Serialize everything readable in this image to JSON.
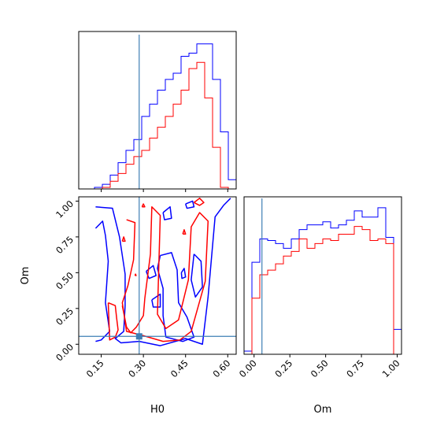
{
  "chart_data": {
    "type": "corner",
    "parameters": [
      "H0",
      "Om"
    ],
    "truth": {
      "H0": 0.285,
      "Om": 0.055
    },
    "ranges": {
      "H0": [
        0.07,
        0.63
      ],
      "Om": [
        -0.07,
        1.03
      ]
    },
    "ticks": {
      "H0": [
        0.15,
        0.3,
        0.45,
        0.6
      ],
      "Om": [
        0.0,
        0.25,
        0.5,
        0.75,
        1.0
      ]
    },
    "tick_labels": {
      "H0": [
        "0.15",
        "0.30",
        "0.45",
        "0.60"
      ],
      "Om": [
        "0.00",
        "0.25",
        "0.50",
        "0.75",
        "1.00"
      ]
    },
    "xlabels": {
      "H0": "H0",
      "Om": "Om"
    },
    "ylabels": {
      "Om": "Om"
    },
    "colors": {
      "series_a": "#0000ff",
      "series_b": "#ff0000",
      "truth": "#3e7fb5"
    },
    "histograms": {
      "H0": {
        "bin_edges": [
          0.07,
          0.098,
          0.126,
          0.154,
          0.182,
          0.21,
          0.238,
          0.266,
          0.294,
          0.322,
          0.35,
          0.378,
          0.406,
          0.434,
          0.462,
          0.49,
          0.518,
          0.546,
          0.574,
          0.602,
          0.63
        ],
        "series": [
          {
            "color": "#0000ff",
            "counts": [
              0,
              0,
              0.01,
              0.03,
              0.09,
              0.17,
              0.25,
              0.32,
              0.47,
              0.55,
              0.64,
              0.71,
              0.75,
              0.86,
              0.88,
              0.94,
              0.94,
              0.71,
              0.37,
              0.06
            ]
          },
          {
            "color": "#ff0000",
            "counts": [
              0,
              0,
              0,
              0.01,
              0.05,
              0.1,
              0.16,
              0.21,
              0.25,
              0.33,
              0.4,
              0.47,
              0.55,
              0.64,
              0.78,
              0.82,
              0.59,
              0.27,
              0.01,
              0
            ]
          }
        ]
      },
      "Om": {
        "bin_edges": [
          -0.07,
          -0.015,
          0.04,
          0.095,
          0.15,
          0.205,
          0.26,
          0.315,
          0.37,
          0.425,
          0.48,
          0.535,
          0.59,
          0.645,
          0.7,
          0.755,
          0.81,
          0.865,
          0.92,
          0.975,
          1.03
        ],
        "series": [
          {
            "color": "#0000ff",
            "counts": [
              0.02,
              0.59,
              0.74,
              0.73,
              0.71,
              0.68,
              0.74,
              0.8,
              0.83,
              0.83,
              0.85,
              0.81,
              0.83,
              0.86,
              0.92,
              0.88,
              0.88,
              0.94,
              0.75,
              0.16
            ]
          },
          {
            "color": "#ff0000",
            "counts": [
              0,
              0.36,
              0.51,
              0.54,
              0.58,
              0.63,
              0.66,
              0.74,
              0.68,
              0.71,
              0.74,
              0.73,
              0.77,
              0.77,
              0.82,
              0.8,
              0.73,
              0.74,
              0.71,
              0
            ]
          }
        ]
      }
    },
    "contours": {
      "panel": "Om_vs_H0",
      "series": [
        {
          "color": "#0000ff",
          "paths": [
            [
              [
                0.13,
                0.96
              ],
              [
                0.19,
                0.95
              ],
              [
                0.215,
                0.75
              ],
              [
                0.235,
                0.49
              ],
              [
                0.235,
                0.27
              ],
              [
                0.23,
                0.09
              ],
              [
                0.2,
                0.04
              ],
              [
                0.22,
                0.01
              ],
              [
                0.285,
                0.02
              ],
              [
                0.36,
                -0.01
              ],
              [
                0.45,
                0.04
              ],
              [
                0.51,
                0.0
              ],
              [
                0.53,
                0.33
              ],
              [
                0.555,
                0.89
              ],
              [
                0.585,
                0.97
              ],
              [
                0.61,
                1.02
              ]
            ],
            [
              [
                0.13,
                0.81
              ],
              [
                0.155,
                0.86
              ],
              [
                0.165,
                0.76
              ],
              [
                0.175,
                0.58
              ],
              [
                0.165,
                0.29
              ],
              [
                0.18,
                0.09
              ],
              [
                0.15,
                0.03
              ],
              [
                0.13,
                0.02
              ]
            ],
            [
              [
                0.36,
                0.62
              ],
              [
                0.4,
                0.64
              ],
              [
                0.42,
                0.52
              ],
              [
                0.425,
                0.29
              ],
              [
                0.455,
                0.19
              ],
              [
                0.48,
                0.05
              ],
              [
                0.44,
                0.02
              ],
              [
                0.38,
                0.05
              ],
              [
                0.37,
                0.2
              ],
              [
                0.37,
                0.39
              ],
              [
                0.35,
                0.53
              ],
              [
                0.36,
                0.62
              ]
            ],
            [
              [
                0.48,
                0.63
              ],
              [
                0.505,
                0.58
              ],
              [
                0.51,
                0.4
              ],
              [
                0.485,
                0.33
              ],
              [
                0.47,
                0.45
              ],
              [
                0.48,
                0.63
              ]
            ],
            [
              [
                0.37,
                0.92
              ],
              [
                0.395,
                0.96
              ],
              [
                0.4,
                0.88
              ],
              [
                0.375,
                0.87
              ],
              [
                0.37,
                0.92
              ]
            ],
            [
              [
                0.33,
                0.31
              ],
              [
                0.36,
                0.35
              ],
              [
                0.36,
                0.26
              ],
              [
                0.335,
                0.26
              ],
              [
                0.33,
                0.31
              ]
            ],
            [
              [
                0.31,
                0.51
              ],
              [
                0.335,
                0.55
              ],
              [
                0.345,
                0.48
              ],
              [
                0.32,
                0.46
              ],
              [
                0.31,
                0.51
              ]
            ],
            [
              [
                0.45,
                0.98
              ],
              [
                0.475,
                1.0
              ],
              [
                0.48,
                0.96
              ],
              [
                0.455,
                0.95
              ],
              [
                0.45,
                0.98
              ]
            ],
            [
              [
                0.435,
                0.5
              ],
              [
                0.445,
                0.53
              ],
              [
                0.45,
                0.47
              ],
              [
                0.437,
                0.46
              ],
              [
                0.435,
                0.5
              ]
            ]
          ]
        },
        {
          "color": "#ff0000",
          "paths": [
            [
              [
                0.24,
                0.87
              ],
              [
                0.27,
                0.85
              ],
              [
                0.265,
                0.59
              ],
              [
                0.245,
                0.41
              ],
              [
                0.225,
                0.29
              ],
              [
                0.24,
                0.09
              ],
              [
                0.3,
                0.06
              ],
              [
                0.37,
                0.02
              ],
              [
                0.43,
                0.03
              ],
              [
                0.47,
                0.09
              ],
              [
                0.52,
                0.44
              ],
              [
                0.53,
                0.86
              ],
              [
                0.5,
                0.92
              ],
              [
                0.47,
                0.82
              ],
              [
                0.46,
                0.45
              ],
              [
                0.425,
                0.17
              ],
              [
                0.38,
                0.11
              ],
              [
                0.35,
                0.21
              ],
              [
                0.355,
                0.56
              ],
              [
                0.36,
                0.9
              ],
              [
                0.33,
                0.96
              ],
              [
                0.325,
                0.63
              ],
              [
                0.305,
                0.32
              ],
              [
                0.3,
                0.2
              ],
              [
                0.275,
                0.12
              ],
              [
                0.255,
                0.08
              ],
              [
                0.24,
                0.12
              ],
              [
                0.225,
                0.27
              ]
            ],
            [
              [
                0.175,
                0.29
              ],
              [
                0.2,
                0.27
              ],
              [
                0.205,
                0.18
              ],
              [
                0.21,
                0.1
              ],
              [
                0.2,
                0.05
              ],
              [
                0.18,
                0.03
              ],
              [
                0.175,
                0.29
              ]
            ],
            [
              [
                0.48,
                0.99
              ],
              [
                0.5,
                1.02
              ],
              [
                0.515,
                0.99
              ],
              [
                0.5,
                0.97
              ],
              [
                0.48,
                0.99
              ]
            ],
            [
              [
                0.225,
                0.72
              ],
              [
                0.23,
                0.75
              ],
              [
                0.235,
                0.72
              ],
              [
                0.225,
                0.72
              ]
            ],
            [
              [
                0.295,
                0.96
              ],
              [
                0.3,
                0.98
              ],
              [
                0.305,
                0.96
              ],
              [
                0.295,
                0.96
              ]
            ],
            [
              [
                0.44,
                0.77
              ],
              [
                0.445,
                0.8
              ],
              [
                0.45,
                0.77
              ],
              [
                0.44,
                0.77
              ]
            ],
            [
              [
                0.27,
                0.48
              ],
              [
                0.272,
                0.49
              ],
              [
                0.274,
                0.48
              ],
              [
                0.27,
                0.48
              ]
            ]
          ]
        }
      ]
    }
  }
}
